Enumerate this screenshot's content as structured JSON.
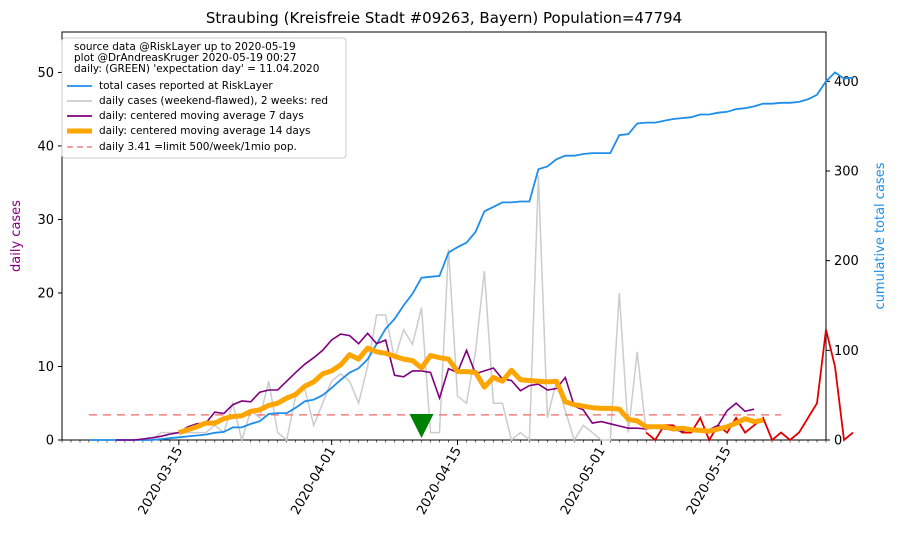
{
  "chart_data": {
    "type": "line",
    "title": "Straubing (Kreisfreie Stadt #09263, Bayern) Population=47794",
    "ylabel_left": "daily cases",
    "ylabel_right": "cumulative total cases",
    "x_range": [
      "2020-03-02",
      "2020-05-26"
    ],
    "ylim_left": [
      0,
      55.5
    ],
    "ylim_right": [
      0,
      455
    ],
    "x_ticks": [
      "2020-03-15",
      "2020-04-01",
      "2020-04-15",
      "2020-05-01",
      "2020-05-15"
    ],
    "y_ticks_left": [
      0,
      10,
      20,
      30,
      40,
      50
    ],
    "y_ticks_right": [
      0,
      100,
      200,
      300,
      400
    ],
    "legend": {
      "position": "top-left",
      "header": [
        "source data @RiskLayer up to 2020-05-19",
        "plot @DrAndreasKruger 2020-05-19 00:27",
        "daily: (GREEN) 'expectation day' = 11.04.2020"
      ],
      "entries": [
        {
          "key": "total",
          "label": "total cases reported at RiskLayer",
          "color": "#1f8ee8"
        },
        {
          "key": "daily",
          "label": "daily cases (weekend-flawed), 2 weeks: red",
          "color": "#cccccc"
        },
        {
          "key": "ma7",
          "label": "daily: centered moving average 7 days",
          "color": "#800080"
        },
        {
          "key": "ma14",
          "label": "daily: centered moving average 14 days",
          "color": "#ffa500"
        },
        {
          "key": "limit",
          "label": "daily 3.41 =limit 500/week/1mio pop.",
          "color": "#f08080"
        }
      ]
    },
    "limit_value": 3.41,
    "expectation_day": "2020-04-11",
    "series": [
      {
        "name": "total cases reported at RiskLayer",
        "axis": "right",
        "start": "2020-03-05",
        "values": [
          0,
          0,
          0,
          0,
          0,
          0,
          0,
          0,
          1,
          2,
          3,
          4,
          5,
          6,
          8,
          9,
          14,
          14,
          18,
          21,
          29,
          30,
          30,
          36,
          43,
          45,
          50,
          58,
          67,
          75,
          80,
          90,
          107,
          124,
          135,
          150,
          163,
          181,
          182,
          183,
          209,
          215,
          220,
          232,
          255,
          260,
          265,
          265,
          266,
          266,
          302,
          305,
          313,
          317,
          317,
          319,
          320,
          320,
          320,
          340,
          341,
          353,
          354,
          354,
          356,
          358,
          359,
          360,
          363,
          363,
          365,
          366,
          369,
          370,
          372,
          375,
          375,
          376,
          376,
          377,
          380,
          385,
          400,
          410,
          403,
          404
        ]
      },
      {
        "name": "daily cases (weekend-flawed), 2 weeks: red",
        "axis": "left",
        "start": "2020-03-05",
        "recent_start": "2020-05-06",
        "values": [
          0,
          0,
          0,
          0,
          0,
          0,
          0,
          0,
          1,
          1,
          1,
          1,
          1,
          1,
          2,
          1,
          5,
          0,
          4,
          3,
          8,
          1,
          0,
          6,
          7,
          2,
          5,
          8,
          9,
          8,
          5,
          10,
          17,
          17,
          11,
          15,
          13,
          18,
          1,
          1,
          26,
          6,
          5,
          12,
          23,
          5,
          5,
          0,
          1,
          0,
          36,
          3,
          8,
          4,
          0,
          2,
          1,
          0,
          0,
          20,
          1,
          12,
          1,
          0,
          2,
          2,
          1,
          1,
          3,
          0,
          2,
          1,
          3,
          1,
          2,
          3,
          0,
          1,
          0,
          1,
          3,
          5,
          15,
          10,
          -7,
          1
        ]
      },
      {
        "name": "daily: centered moving average 7 days",
        "axis": "left",
        "start": "2020-03-08",
        "values": [
          0,
          0,
          0,
          0.14,
          0.3,
          0.5,
          0.8,
          1,
          1.8,
          2.2,
          2.3,
          3.8,
          3.6,
          4.8,
          5.3,
          5.2,
          6.5,
          6.8,
          6.8,
          8,
          9.2,
          10.3,
          11.2,
          12.2,
          13.6,
          14.4,
          14.2,
          13.1,
          14.5,
          13.1,
          13.6,
          8.8,
          8.6,
          9.4,
          9.4,
          9.2,
          5.7,
          9.7,
          9.2,
          12.2,
          9,
          9.4,
          9.8,
          8.3,
          8.1,
          6.7,
          7.4,
          7.6,
          6.8,
          7,
          8.5,
          4.6,
          4.1,
          2.3,
          2.5,
          2.2,
          1.9,
          1.6,
          1.6,
          1.5,
          1.8,
          1.5,
          1.4,
          1.2,
          1.5,
          1.3,
          1.4,
          2,
          4,
          5,
          3.9,
          4.2
        ]
      },
      {
        "name": "daily: centered moving average 14 days",
        "axis": "left",
        "start": "2020-03-15",
        "values": [
          1,
          1.4,
          1.8,
          2.3,
          2.3,
          2.9,
          3.2,
          3.3,
          3.9,
          4.1,
          4.7,
          5,
          5.7,
          6.2,
          7.3,
          7.9,
          9,
          9.4,
          10.2,
          11.6,
          11,
          12.5,
          12,
          11.8,
          11.4,
          11,
          10.8,
          9.8,
          11.5,
          11.2,
          11,
          9.3,
          9.3,
          9.2,
          7.2,
          8.5,
          8,
          9.5,
          8.2,
          8.1,
          8,
          7.9,
          8,
          5.2,
          4.8,
          4.6,
          4.4,
          4.3,
          4.3,
          4.2,
          2.8,
          2.6,
          1.8,
          1.8,
          1.8,
          1.5,
          1.6,
          1.4,
          1.3,
          1.2,
          1.5,
          1.8,
          2.3,
          2.9,
          2.5,
          2.7
        ]
      }
    ]
  }
}
